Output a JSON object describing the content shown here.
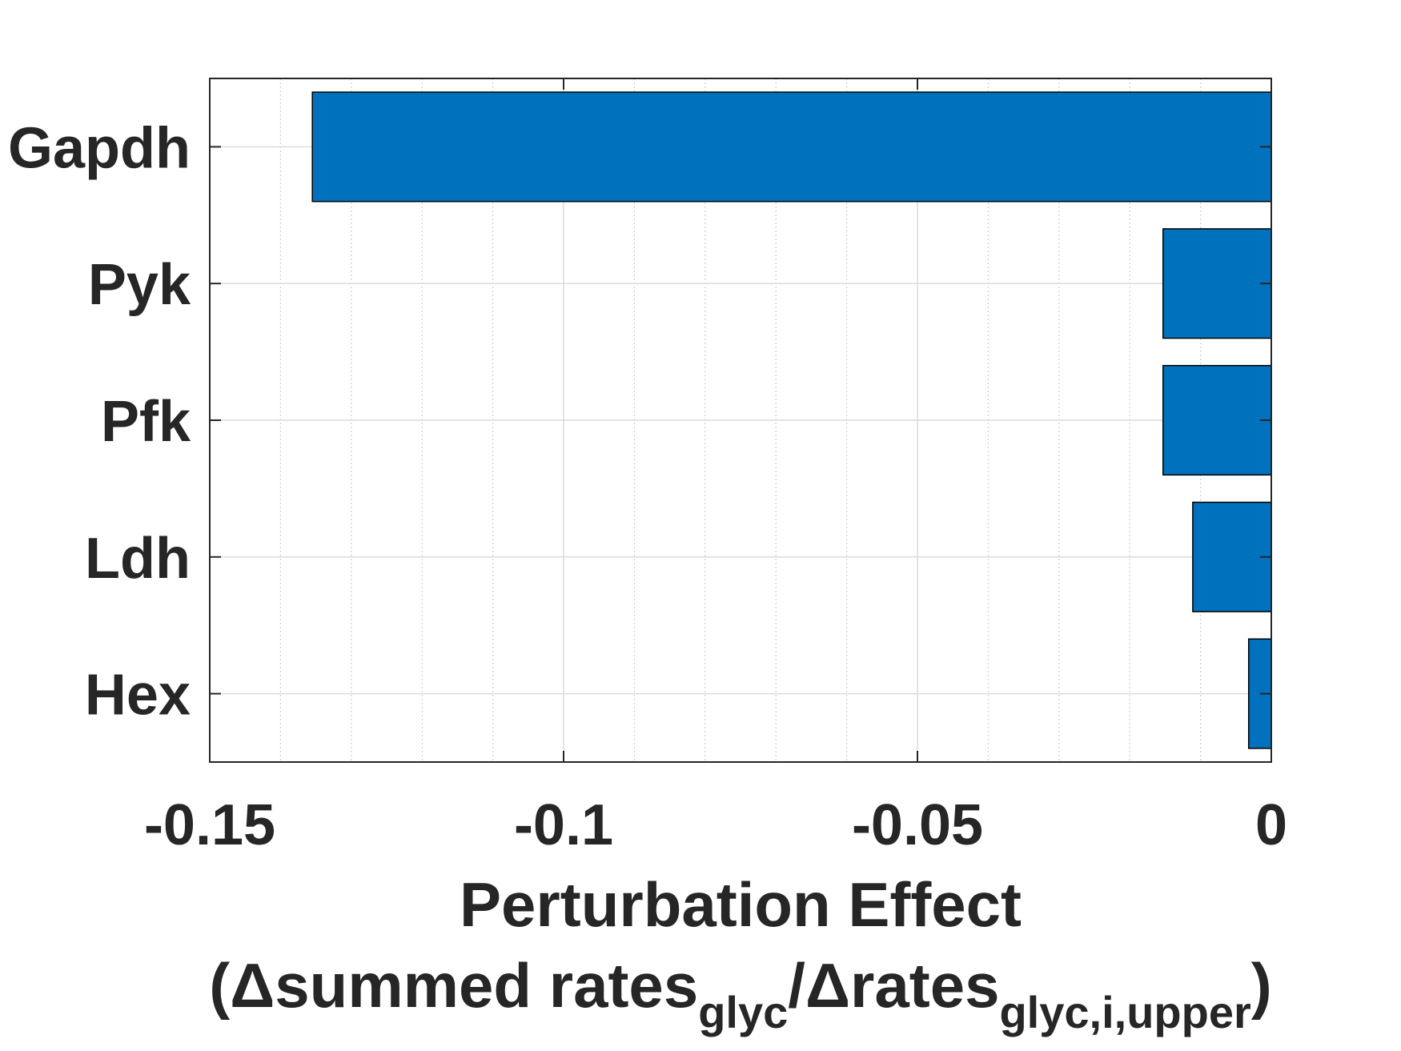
{
  "chart_data": {
    "type": "bar",
    "orientation": "horizontal",
    "categories": [
      "Gapdh",
      "Pyk",
      "Pfk",
      "Ldh",
      "Hex"
    ],
    "values": [
      -0.1355,
      -0.0153,
      -0.0153,
      -0.0111,
      -0.0032
    ],
    "xlim": [
      -0.15,
      0
    ],
    "xticks": [
      -0.15,
      -0.1,
      -0.05,
      0
    ],
    "xtick_labels": [
      "-0.15",
      "-0.1",
      "-0.05",
      "0"
    ],
    "xlabel_line1": "Perturbation Effect",
    "xlabel_line2": {
      "open": "(",
      "delta1": "Δ",
      "text1": "summed rates",
      "sub1": "glyc",
      "slash": "/",
      "delta2": "Δ",
      "text2": "rates",
      "sub2": "glyc,i,upper",
      "close": ")"
    },
    "grid": true,
    "minor_grid_x": true,
    "bar_color": "#0072BD",
    "bar_edge_color": "#000000"
  }
}
